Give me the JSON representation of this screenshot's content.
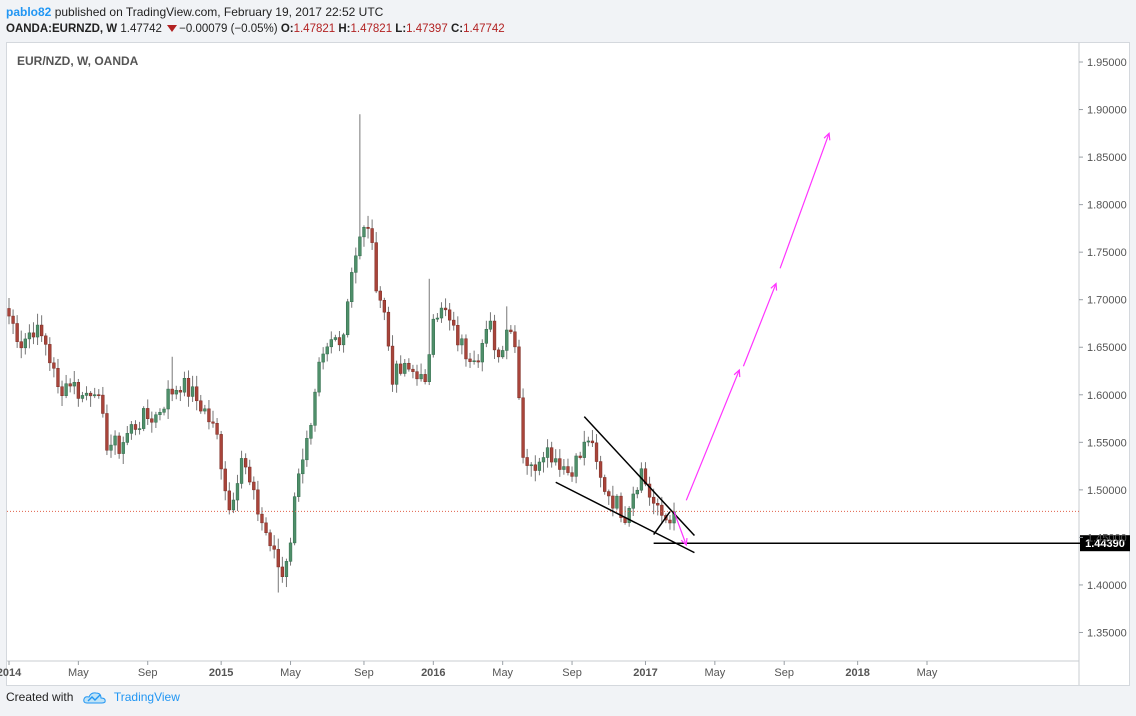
{
  "header": {
    "author": "pablo82",
    "published": "published on TradingView.com, February 19, 2017 22:52 UTC",
    "symbol": "OANDA:EURNZD, W",
    "last": "1.47742",
    "change": "−0.00079 (−0.05%)",
    "o_label": "O:",
    "o": "1.47821",
    "h_label": "H:",
    "h": "1.47821",
    "l_label": "L:",
    "l": "1.47397",
    "c_label": "C:",
    "c": "1.47742"
  },
  "footer": {
    "created_with": "Created with",
    "brand": "TradingView",
    "icon": "tradingview-cloud-icon"
  },
  "colors": {
    "up": "#4f8f6a",
    "down": "#a8443a",
    "wick": "#777777",
    "arrow": "#ff33ff",
    "priceline": "#e0604a"
  },
  "chart_data": {
    "type": "candlestick",
    "title": "EUR/NZD, W, OANDA",
    "ylim": [
      1.32,
      1.97
    ],
    "y_ticks": [
      "1.95000",
      "1.90000",
      "1.85000",
      "1.80000",
      "1.75000",
      "1.70000",
      "1.65000",
      "1.60000",
      "1.55000",
      "1.50000",
      "1.45000",
      "1.40000",
      "1.35000"
    ],
    "x_ticks": [
      {
        "label": "2014",
        "week": 0
      },
      {
        "label": "May",
        "week": 17
      },
      {
        "label": "Sep",
        "week": 34
      },
      {
        "label": "2015",
        "week": 52
      },
      {
        "label": "May",
        "week": 69
      },
      {
        "label": "Sep",
        "week": 87
      },
      {
        "label": "2016",
        "week": 104
      },
      {
        "label": "May",
        "week": 121
      },
      {
        "label": "Sep",
        "week": 138
      },
      {
        "label": "2017",
        "week": 156
      },
      {
        "label": "May",
        "week": 173
      },
      {
        "label": "Sep",
        "week": 190
      },
      {
        "label": "2018",
        "week": 208
      },
      {
        "label": "May",
        "week": 225
      }
    ],
    "anchors": [
      [
        0,
        1.683
      ],
      [
        3,
        1.655
      ],
      [
        6,
        1.67
      ],
      [
        9,
        1.655
      ],
      [
        12,
        1.605
      ],
      [
        15,
        1.615
      ],
      [
        18,
        1.598
      ],
      [
        21,
        1.61
      ],
      [
        24,
        1.55
      ],
      [
        27,
        1.545
      ],
      [
        30,
        1.565
      ],
      [
        33,
        1.575
      ],
      [
        36,
        1.578
      ],
      [
        39,
        1.6
      ],
      [
        42,
        1.612
      ],
      [
        45,
        1.6
      ],
      [
        48,
        1.583
      ],
      [
        51,
        1.555
      ],
      [
        54,
        1.48
      ],
      [
        57,
        1.535
      ],
      [
        60,
        1.49
      ],
      [
        63,
        1.455
      ],
      [
        65,
        1.43
      ],
      [
        67,
        1.41
      ],
      [
        69,
        1.45
      ],
      [
        71,
        1.525
      ],
      [
        74,
        1.56
      ],
      [
        76,
        1.625
      ],
      [
        79,
        1.655
      ],
      [
        82,
        1.667
      ],
      [
        84,
        1.735
      ],
      [
        86,
        1.762
      ],
      [
        88,
        1.78
      ],
      [
        90,
        1.72
      ],
      [
        92,
        1.685
      ],
      [
        94,
        1.62
      ],
      [
        97,
        1.625
      ],
      [
        100,
        1.625
      ],
      [
        102,
        1.605
      ],
      [
        104,
        1.69
      ],
      [
        107,
        1.685
      ],
      [
        109,
        1.665
      ],
      [
        112,
        1.645
      ],
      [
        115,
        1.645
      ],
      [
        118,
        1.67
      ],
      [
        120,
        1.64
      ],
      [
        122,
        1.673
      ],
      [
        124,
        1.66
      ],
      [
        126,
        1.54
      ],
      [
        128,
        1.52
      ],
      [
        131,
        1.545
      ],
      [
        134,
        1.535
      ],
      [
        137,
        1.52
      ],
      [
        140,
        1.535
      ],
      [
        142,
        1.555
      ],
      [
        145,
        1.51
      ],
      [
        148,
        1.49
      ],
      [
        151,
        1.475
      ],
      [
        153,
        1.5
      ],
      [
        155,
        1.52
      ],
      [
        157,
        1.495
      ],
      [
        159,
        1.475
      ],
      [
        161,
        1.47
      ],
      [
        163,
        1.477
      ]
    ],
    "level_line": {
      "price": 1.4439,
      "label": "1.44390"
    },
    "current_price": 1.47742,
    "annotations": {
      "wedge_upper": [
        [
          141,
          1.577
        ],
        [
          168,
          1.452
        ]
      ],
      "wedge_lower": [
        [
          134,
          1.508
        ],
        [
          168,
          1.434
        ]
      ],
      "small_leg": [
        [
          158,
          1.453
        ],
        [
          162,
          1.477
        ]
      ],
      "drop_arrow": [
        [
          163,
          1.477
        ],
        [
          166,
          1.442
        ]
      ],
      "rally_arrows": [
        [
          [
            166,
            1.489
          ],
          [
            179,
            1.626
          ]
        ],
        [
          [
            180,
            1.63
          ],
          [
            188,
            1.717
          ]
        ],
        [
          [
            189,
            1.733
          ],
          [
            201,
            1.875
          ]
        ]
      ]
    }
  }
}
